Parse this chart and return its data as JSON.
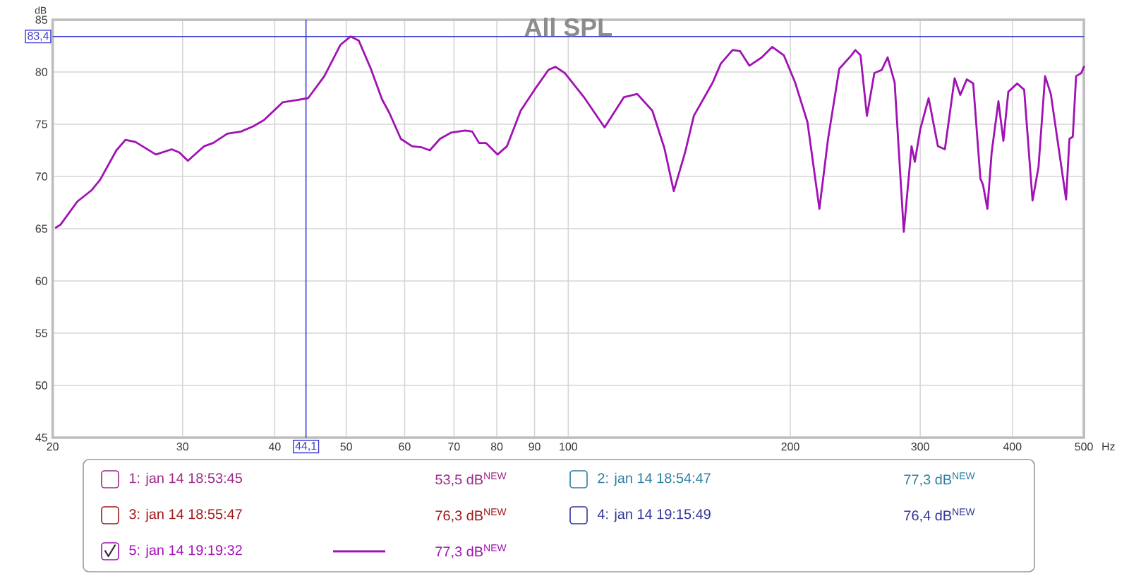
{
  "chart_data": {
    "type": "line",
    "title": "All SPL",
    "xlabel": "Hz",
    "ylabel": "dB",
    "log": "x",
    "xlim": [
      20,
      500
    ],
    "xticks": [
      20,
      30,
      40,
      50,
      60,
      70,
      80,
      90,
      100,
      200,
      300,
      400,
      500
    ],
    "ylim": [
      45,
      85
    ],
    "yticks": [
      45,
      50,
      55,
      60,
      65,
      70,
      75,
      80,
      85
    ],
    "grid": true,
    "legend": "bottom",
    "series": [
      {
        "name": "1: jan 14 18:53:45",
        "color": "#9c2a8a"
      },
      {
        "name": "2: jan 14 18:54:47",
        "color": "#2c7ea0"
      },
      {
        "name": "3: jan 14 18:55:47",
        "color": "#a01818"
      },
      {
        "name": "4: jan 14 19:15:49",
        "color": "#34349a"
      },
      {
        "name": "5: jan 14 19:19:32",
        "color": "#a012b4",
        "x": [
          20.2,
          20.5,
          21.6,
          22.6,
          23.2,
          24.4,
          25.1,
          25.9,
          27.6,
          29.0,
          29.7,
          30.5,
          32.1,
          33.0,
          34.5,
          36.0,
          37.4,
          38.7,
          41.0,
          42.8,
          44.4,
          46.7,
          49.1,
          50.7,
          52.0,
          54.0,
          55.9,
          57.2,
          59.3,
          61.4,
          63.2,
          64.9,
          67.0,
          69.4,
          72.5,
          74.1,
          75.7,
          77.4,
          80.2,
          82.6,
          86.2,
          90.0,
          94.0,
          96.1,
          98.9,
          105,
          112,
          119,
          124,
          130,
          135,
          139,
          144,
          148,
          157,
          161,
          167,
          171,
          176,
          183,
          189,
          196,
          203,
          211,
          219,
          225,
          233,
          242,
          245,
          249,
          254,
          260,
          266,
          271,
          277,
          285,
          292,
          295,
          300,
          308,
          317,
          324,
          334,
          340,
          347,
          354,
          362,
          365,
          370,
          375,
          383,
          389,
          395,
          406,
          415,
          426,
          434,
          443,
          451,
          473,
          478,
          483,
          488,
          496,
          500
        ],
        "values": [
          65.1,
          65.4,
          67.6,
          68.7,
          69.7,
          72.5,
          73.5,
          73.3,
          72.1,
          72.6,
          72.3,
          71.5,
          72.9,
          73.2,
          74.1,
          74.3,
          74.8,
          75.4,
          77.1,
          77.3,
          77.5,
          79.6,
          82.6,
          83.4,
          83.0,
          80.3,
          77.4,
          76.1,
          73.6,
          72.9,
          72.8,
          72.5,
          73.6,
          74.2,
          74.4,
          74.3,
          73.2,
          73.2,
          72.1,
          72.9,
          76.3,
          78.3,
          80.2,
          80.5,
          79.9,
          77.6,
          74.7,
          77.6,
          77.9,
          76.3,
          72.7,
          68.6,
          72.3,
          75.8,
          79.0,
          80.8,
          82.1,
          82.0,
          80.6,
          81.4,
          82.4,
          81.6,
          79.0,
          75.2,
          66.9,
          73.6,
          80.3,
          81.6,
          82.1,
          81.6,
          75.8,
          79.9,
          80.2,
          81.4,
          79.0,
          64.7,
          72.9,
          71.4,
          74.5,
          77.5,
          72.9,
          72.6,
          79.4,
          77.8,
          79.3,
          78.9,
          69.8,
          69.2,
          66.9,
          72.3,
          77.2,
          73.4,
          78.1,
          78.9,
          78.3,
          67.7,
          70.9,
          79.6,
          77.9,
          67.8,
          73.6,
          73.8,
          79.6,
          79.9,
          80.5
        ]
      }
    ],
    "ref_lines": [
      {
        "axis": "x",
        "value": 44.1,
        "label": "44,1",
        "color": "#3c3cd2"
      },
      {
        "axis": "y",
        "value": 83.4,
        "label": "83,4",
        "color": "#3c3cd2"
      }
    ],
    "annotations": [
      "53,5 dB$^{NEW}$",
      "77,3 dB$^{NEW}$",
      "76,3 dB$^{NEW}$",
      "76,4 dB$^{NEW}$",
      "77,3 dB$^{NEW}$"
    ]
  }
}
